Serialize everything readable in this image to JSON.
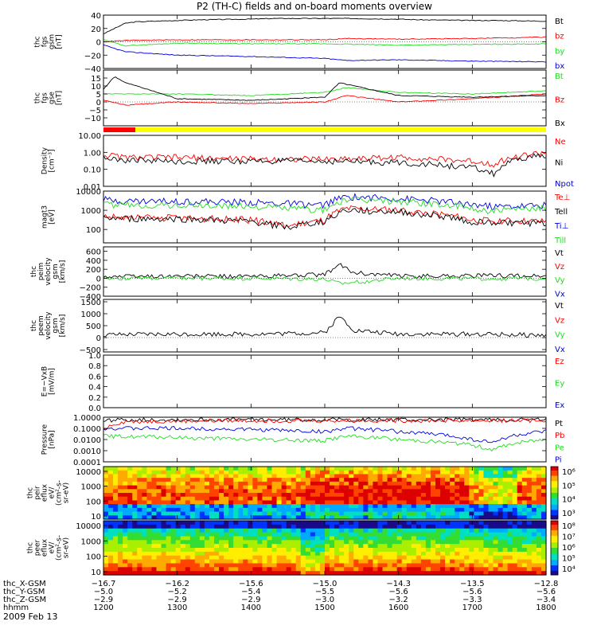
{
  "title": "P2 (TH-C) fields and on-board moments overview",
  "date_label": "2009 Feb 13",
  "colors": {
    "black": "#000000",
    "red": "#ff0000",
    "green": "#22dd22",
    "blue": "#0000dd",
    "yellow": "#ffff00"
  },
  "chart_data": [
    {
      "type": "line",
      "name": "fgs_gsm",
      "ylabel": [
        "thc",
        "fgs",
        "gsm",
        "[nT]"
      ],
      "ylim": [
        -40,
        40
      ],
      "ticks": [
        "40",
        "20",
        "0",
        "−20",
        "−40"
      ],
      "tickvals": [
        40,
        20,
        0,
        -20,
        -40
      ],
      "legend": [
        {
          "label": "Bt",
          "color": "black"
        },
        {
          "label": "bz",
          "color": "red"
        },
        {
          "label": "by",
          "color": "green"
        },
        {
          "label": "bx",
          "color": "blue"
        }
      ],
      "series": [
        {
          "name": "Bt",
          "color": "black",
          "x": [
            1200,
            1215,
            1230,
            1245,
            1300,
            1330,
            1400,
            1430,
            1500,
            1530,
            1600,
            1630,
            1700,
            1730,
            1800
          ],
          "values": [
            12,
            20,
            28,
            30,
            32,
            33,
            34,
            35,
            35,
            35,
            34,
            33,
            32,
            32,
            31
          ]
        },
        {
          "name": "bz",
          "color": "red",
          "x": [
            1200,
            1230,
            1300,
            1400,
            1500,
            1530,
            1600,
            1700,
            1800
          ],
          "values": [
            0,
            2,
            3,
            3,
            3,
            5,
            4,
            5,
            7
          ]
        },
        {
          "name": "by",
          "color": "green",
          "x": [
            1200,
            1230,
            1300,
            1400,
            1500,
            1600,
            1700,
            1800
          ],
          "values": [
            3,
            -6,
            -2,
            -3,
            -3,
            -5,
            -4,
            -3
          ]
        },
        {
          "name": "bx",
          "color": "blue",
          "x": [
            1200,
            1230,
            1300,
            1400,
            1500,
            1530,
            1600,
            1700,
            1800
          ],
          "values": [
            -5,
            -15,
            -20,
            -22,
            -25,
            -28,
            -27,
            -29,
            -30
          ]
        }
      ]
    },
    {
      "type": "line",
      "name": "fgs_gse",
      "ylabel": [
        "thc",
        "fgs",
        "gse",
        "[nT]"
      ],
      "ylim": [
        -15,
        20
      ],
      "ticks": [
        "15",
        "10",
        "5",
        "0",
        "−5",
        "−10"
      ],
      "tickvals": [
        15,
        10,
        5,
        0,
        -5,
        -10
      ],
      "legend": [
        {
          "label": "Bt",
          "color": "green"
        },
        {
          "label": "Bz",
          "color": "red"
        },
        {
          "label": "Bx",
          "color": "black"
        }
      ],
      "series": [
        {
          "name": "Bt",
          "color": "green",
          "x": [
            1200,
            1230,
            1300,
            1400,
            1500,
            1530,
            1600,
            1700,
            1800
          ],
          "values": [
            5,
            5,
            5,
            4,
            6,
            9,
            6,
            5,
            7
          ]
        },
        {
          "name": "Bz",
          "color": "red",
          "x": [
            1200,
            1230,
            1300,
            1400,
            1500,
            1530,
            1600,
            1700,
            1800
          ],
          "values": [
            1,
            -2,
            0,
            -1,
            0,
            4,
            0,
            2,
            5
          ]
        },
        {
          "name": "Bx",
          "color": "black",
          "x": [
            1200,
            1215,
            1230,
            1245,
            1300,
            1400,
            1500,
            1520,
            1540,
            1600,
            1700,
            1800
          ],
          "values": [
            8,
            16,
            12,
            10,
            2,
            1,
            3,
            12,
            10,
            4,
            3,
            4
          ]
        }
      ]
    },
    {
      "type": "line",
      "name": "density",
      "ylabel": [
        "Density",
        "[cm⁻³]"
      ],
      "ylim": [
        0.01,
        10
      ],
      "log": true,
      "ticks": [
        "10.00",
        "1.00",
        "0.10",
        "0.01"
      ],
      "tickvals": [
        10,
        1,
        0.1,
        0.01
      ],
      "legend": [
        {
          "label": "Ne",
          "color": "red"
        },
        {
          "label": "Ni",
          "color": "black"
        },
        {
          "label": "Npot",
          "color": "blue"
        }
      ],
      "series": [
        {
          "name": "Ne",
          "color": "red",
          "x": [
            1200,
            1230,
            1300,
            1400,
            1500,
            1600,
            1700,
            1730,
            1800
          ],
          "values": [
            0.7,
            0.5,
            0.5,
            0.4,
            0.4,
            0.5,
            0.3,
            0.2,
            1.0
          ]
        },
        {
          "name": "Ni",
          "color": "black",
          "x": [
            1200,
            1230,
            1300,
            1400,
            1500,
            1600,
            1700,
            1730,
            1800
          ],
          "values": [
            0.5,
            0.35,
            0.3,
            0.3,
            0.3,
            0.25,
            0.12,
            0.05,
            0.7
          ]
        }
      ]
    },
    {
      "type": "line",
      "name": "temperature",
      "ylabel": [
        "magt3",
        "[eV]"
      ],
      "ylim": [
        20,
        10000
      ],
      "log": true,
      "ticks": [
        "10000",
        "1000",
        "100"
      ],
      "tickvals": [
        10000,
        1000,
        100
      ],
      "legend": [
        {
          "label": "Te⊥",
          "color": "red"
        },
        {
          "label": "Tell",
          "color": "black"
        },
        {
          "label": "Ti⊥",
          "color": "blue"
        },
        {
          "label": "Till",
          "color": "green"
        }
      ],
      "series": [
        {
          "name": "Ti⊥",
          "color": "blue",
          "x": [
            1200,
            1230,
            1300,
            1400,
            1500,
            1530,
            1600,
            1700,
            1730,
            1800
          ],
          "values": [
            3500,
            3000,
            3000,
            2500,
            1800,
            5000,
            4000,
            2000,
            1500,
            1800
          ]
        },
        {
          "name": "Till",
          "color": "green",
          "x": [
            1200,
            1230,
            1300,
            1400,
            1500,
            1530,
            1600,
            1700,
            1730,
            1800
          ],
          "values": [
            2000,
            1800,
            1800,
            1600,
            1000,
            3500,
            3000,
            1200,
            900,
            1200
          ]
        },
        {
          "name": "Te⊥",
          "color": "red",
          "x": [
            1200,
            1230,
            1300,
            1400,
            1450,
            1500,
            1530,
            1600,
            1700,
            1800
          ],
          "values": [
            500,
            400,
            400,
            300,
            150,
            300,
            1200,
            1000,
            300,
            250
          ]
        },
        {
          "name": "Tell",
          "color": "black",
          "x": [
            1200,
            1230,
            1300,
            1400,
            1450,
            1500,
            1530,
            1600,
            1700,
            1800
          ],
          "values": [
            400,
            350,
            350,
            250,
            120,
            250,
            1000,
            800,
            250,
            200
          ]
        }
      ]
    },
    {
      "type": "line",
      "name": "peim_velocity",
      "ylabel": [
        "thc",
        "peim",
        "velocity",
        "gsm",
        "[km/s]"
      ],
      "ylim": [
        -400,
        700
      ],
      "ticks": [
        "600",
        "400",
        "200",
        "0",
        "−200",
        "−400"
      ],
      "tickvals": [
        600,
        400,
        200,
        0,
        -200,
        -400
      ],
      "legend": [
        {
          "label": "Vt",
          "color": "black"
        },
        {
          "label": "Vz",
          "color": "red"
        },
        {
          "label": "Vy",
          "color": "green"
        },
        {
          "label": "Vx",
          "color": "blue"
        }
      ],
      "series": [
        {
          "name": "Vt",
          "color": "black",
          "x": [
            1200,
            1300,
            1400,
            1500,
            1520,
            1540,
            1600,
            1700,
            1800
          ],
          "values": [
            40,
            50,
            40,
            80,
            300,
            120,
            50,
            60,
            50
          ]
        },
        {
          "name": "Vy",
          "color": "green",
          "x": [
            1200,
            1300,
            1400,
            1500,
            1520,
            1600,
            1700,
            1800
          ],
          "values": [
            0,
            0,
            0,
            -20,
            -120,
            0,
            -10,
            0
          ]
        }
      ]
    },
    {
      "type": "line",
      "name": "peem_velocity",
      "ylabel": [
        "thc",
        "peem",
        "velocity",
        "gsm",
        "[km/s]"
      ],
      "ylim": [
        -600,
        1600
      ],
      "ticks": [
        "1500",
        "1000",
        "500",
        "0",
        "−500"
      ],
      "tickvals": [
        1500,
        1000,
        500,
        0,
        -500
      ],
      "legend": [
        {
          "label": "Vt",
          "color": "black"
        },
        {
          "label": "Vz",
          "color": "red"
        },
        {
          "label": "Vy",
          "color": "green"
        },
        {
          "label": "Vx",
          "color": "blue"
        }
      ],
      "series": [
        {
          "name": "Vt",
          "color": "black",
          "x": [
            1200,
            1300,
            1400,
            1500,
            1520,
            1540,
            1600,
            1700,
            1800
          ],
          "values": [
            100,
            150,
            150,
            200,
            900,
            300,
            150,
            150,
            100
          ]
        }
      ]
    },
    {
      "type": "line",
      "name": "e_field",
      "ylabel": [
        "E=−VxB",
        "[mV/m]"
      ],
      "ylim": [
        0,
        1
      ],
      "ticks": [
        "1.0",
        "0.8",
        "0.6",
        "0.4",
        "0.2",
        "0.0"
      ],
      "tickvals": [
        1,
        0.8,
        0.6,
        0.4,
        0.2,
        0
      ],
      "legend": [
        {
          "label": "Ez",
          "color": "red"
        },
        {
          "label": "Ey",
          "color": "green"
        },
        {
          "label": "Ex",
          "color": "blue"
        }
      ],
      "series": []
    },
    {
      "type": "line",
      "name": "pressure",
      "ylabel": [
        "Pressure",
        "[nPa]"
      ],
      "ylim": [
        0.0001,
        1
      ],
      "log": true,
      "ticks": [
        "1.0000",
        "0.1000",
        "0.0100",
        "0.0010",
        "0.0001"
      ],
      "tickvals": [
        1,
        0.1,
        0.01,
        0.001,
        0.0001
      ],
      "legend": [
        {
          "label": "Pt",
          "color": "black"
        },
        {
          "label": "Pb",
          "color": "red"
        },
        {
          "label": "Pe",
          "color": "green"
        },
        {
          "label": "Pi",
          "color": "blue"
        }
      ],
      "series": [
        {
          "name": "Pt",
          "color": "black",
          "x": [
            1200,
            1230,
            1300,
            1400,
            1500,
            1600,
            1700,
            1800
          ],
          "values": [
            0.5,
            0.6,
            0.6,
            0.6,
            0.6,
            0.6,
            0.6,
            0.6
          ]
        },
        {
          "name": "Pb",
          "color": "red",
          "x": [
            1200,
            1230,
            1300,
            1400,
            1500,
            1600,
            1700,
            1800
          ],
          "values": [
            0.08,
            0.4,
            0.45,
            0.5,
            0.5,
            0.5,
            0.5,
            0.5
          ]
        },
        {
          "name": "Pi",
          "color": "blue",
          "x": [
            1200,
            1300,
            1400,
            1500,
            1530,
            1600,
            1700,
            1730,
            1800
          ],
          "values": [
            0.1,
            0.1,
            0.08,
            0.05,
            0.1,
            0.05,
            0.01,
            0.005,
            0.05
          ]
        },
        {
          "name": "Pe",
          "color": "green",
          "x": [
            1200,
            1300,
            1400,
            1500,
            1530,
            1600,
            1700,
            1730,
            1800
          ],
          "values": [
            0.02,
            0.015,
            0.01,
            0.008,
            0.02,
            0.01,
            0.003,
            0.001,
            0.01
          ]
        }
      ]
    },
    {
      "type": "heatmap",
      "name": "peir_spectrogram",
      "ylabel": [
        "thc",
        "peir",
        "eflux",
        "eV/",
        "(cm²-s-",
        "sr-eV)"
      ],
      "ticks": [
        "10000",
        "1000",
        "100",
        "10"
      ],
      "colorbar": [
        "10⁶",
        "10⁵",
        "10⁴",
        "10³"
      ]
    },
    {
      "type": "heatmap",
      "name": "peer_spectrogram",
      "ylabel": [
        "thc",
        "peer",
        "eflux",
        "eV/",
        "(cm²-s-",
        "sr-eV)"
      ],
      "ticks": [
        "10000",
        "1000",
        "100",
        "10"
      ],
      "colorbar": [
        "10⁸",
        "10⁷",
        "10⁶",
        "10⁵",
        "10⁴"
      ]
    }
  ],
  "xaxis": {
    "rows": [
      {
        "label": "thc_X-GSM",
        "values": [
          "−16.7",
          "−16.2",
          "−15.6",
          "−15.0",
          "−14.3",
          "−13.5",
          "−12.8"
        ]
      },
      {
        "label": "thc_Y-GSM",
        "values": [
          "−5.0",
          "−5.2",
          "−5.4",
          "−5.5",
          "−5.6",
          "−5.6",
          "−5.6"
        ]
      },
      {
        "label": "thc_Z-GSM",
        "values": [
          "−2.9",
          "−2.9",
          "−2.9",
          "−3.0",
          "−3.2",
          "−3.3",
          "−3.4"
        ]
      },
      {
        "label": "hhmm",
        "values": [
          "1200",
          "1300",
          "1400",
          "1500",
          "1600",
          "1700",
          "1800"
        ]
      }
    ]
  }
}
